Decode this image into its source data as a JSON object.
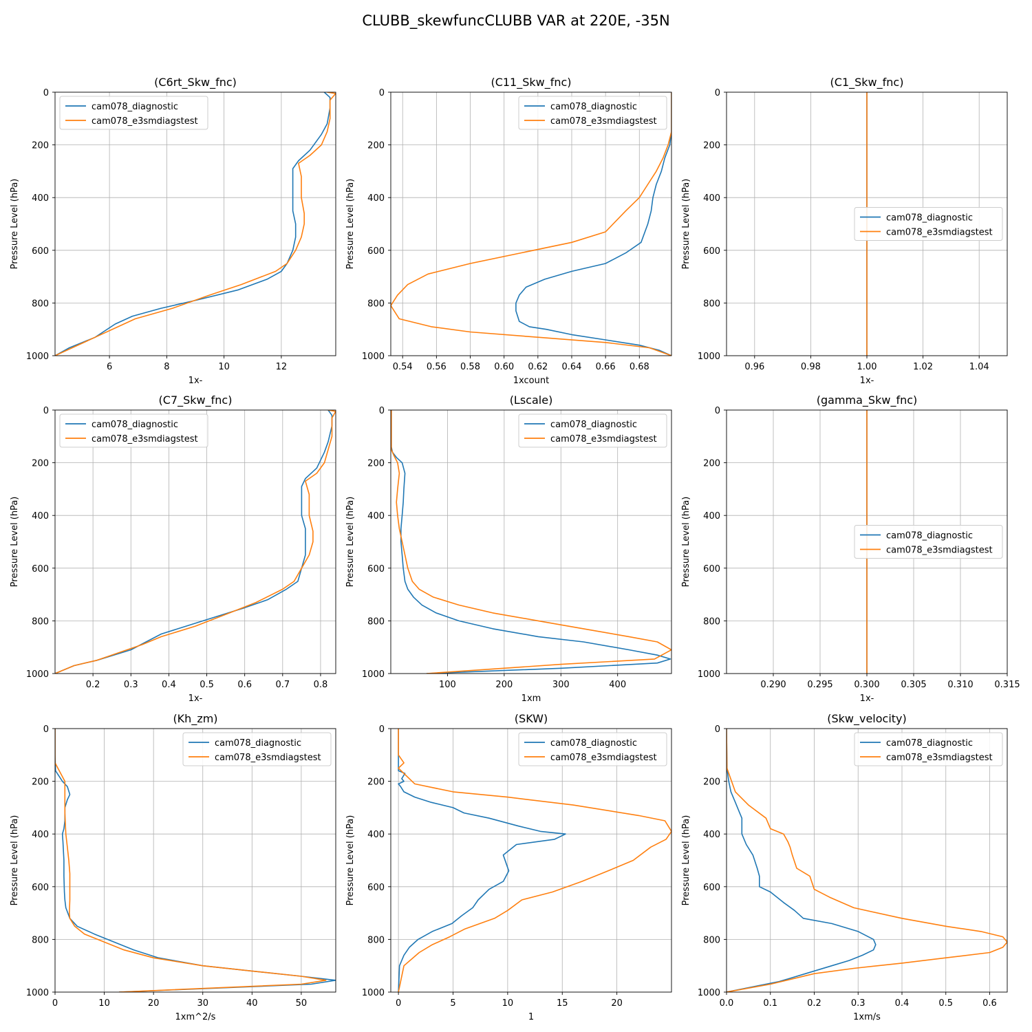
{
  "figure_title": "CLUBB_skewfuncCLUBB VAR at 220E, -35N",
  "colors": {
    "cam078_diagnostic": "#1f77b4",
    "cam078_e3smdiagstest": "#ff7f0e",
    "grid": "#b0b0b0"
  },
  "chart_data": [
    {
      "type": "line",
      "title": "(C6rt_Skw_fnc)",
      "xlabel": "1x-",
      "ylabel": "Pressure Level (hPa)",
      "xlim": [
        4.1,
        13.9
      ],
      "ylim": [
        1000,
        0
      ],
      "xticks": [
        6,
        8,
        10,
        12
      ],
      "yticks": [
        0,
        200,
        400,
        600,
        800,
        1000
      ],
      "grid": true,
      "legend": "upper left",
      "series": [
        {
          "name": "cam078_diagnostic",
          "x": [
            13.5,
            13.7,
            13.7,
            13.6,
            13.4,
            13.0,
            12.6,
            12.4,
            12.4,
            12.4,
            12.4,
            12.5,
            12.5,
            12.4,
            12.2,
            12.0,
            11.5,
            10.5,
            9.0,
            7.8,
            6.8,
            6.2,
            5.5,
            4.6,
            4.1
          ],
          "y": [
            0,
            20,
            60,
            120,
            160,
            220,
            260,
            290,
            330,
            400,
            450,
            500,
            550,
            600,
            650,
            680,
            710,
            750,
            790,
            820,
            850,
            880,
            930,
            970,
            1000
          ]
        },
        {
          "name": "cam078_e3smdiagstest",
          "x": [
            13.6,
            13.9,
            13.7,
            13.7,
            13.6,
            13.4,
            13.0,
            12.6,
            12.7,
            12.7,
            12.8,
            12.8,
            12.7,
            12.5,
            12.2,
            11.8,
            10.6,
            9.5,
            8.2,
            6.9,
            6.3,
            5.5,
            4.7,
            4.1
          ],
          "y": [
            0,
            5,
            30,
            100,
            150,
            200,
            240,
            270,
            320,
            400,
            460,
            500,
            550,
            600,
            650,
            680,
            730,
            770,
            820,
            860,
            890,
            930,
            970,
            1000
          ]
        }
      ]
    },
    {
      "type": "line",
      "title": "(C11_Skw_fnc)",
      "xlabel": "1xcount",
      "ylabel": "Pressure Level (hPa)",
      "xlim": [
        0.533,
        0.699
      ],
      "ylim": [
        1000,
        0
      ],
      "xticks": [
        0.54,
        0.56,
        0.58,
        0.6,
        0.62,
        0.64,
        0.66,
        0.68
      ],
      "yticks": [
        0,
        200,
        400,
        600,
        800,
        1000
      ],
      "grid": true,
      "legend": "upper right",
      "series": [
        {
          "name": "cam078_diagnostic",
          "x": [
            0.699,
            0.699,
            0.698,
            0.695,
            0.693,
            0.69,
            0.688,
            0.687,
            0.685,
            0.681,
            0.672,
            0.66,
            0.64,
            0.624,
            0.613,
            0.609,
            0.607,
            0.607,
            0.609,
            0.615,
            0.625,
            0.64,
            0.66,
            0.68,
            0.692,
            0.699
          ],
          "y": [
            0,
            150,
            200,
            250,
            300,
            350,
            400,
            450,
            500,
            570,
            610,
            650,
            680,
            710,
            740,
            770,
            800,
            830,
            870,
            890,
            900,
            920,
            940,
            960,
            980,
            1000
          ]
        },
        {
          "name": "cam078_e3smdiagstest",
          "x": [
            0.699,
            0.699,
            0.697,
            0.694,
            0.69,
            0.685,
            0.68,
            0.672,
            0.66,
            0.64,
            0.61,
            0.58,
            0.555,
            0.543,
            0.537,
            0.533,
            0.538,
            0.557,
            0.58,
            0.62,
            0.66,
            0.686,
            0.699
          ],
          "y": [
            0,
            150,
            200,
            250,
            300,
            350,
            400,
            450,
            530,
            570,
            610,
            650,
            690,
            730,
            770,
            810,
            860,
            890,
            910,
            930,
            950,
            970,
            1000
          ]
        }
      ]
    },
    {
      "type": "line",
      "title": "(C1_Skw_fnc)",
      "xlabel": "1x-",
      "ylabel": "Pressure Level (hPa)",
      "xlim": [
        0.95,
        1.05
      ],
      "ylim": [
        1000,
        0
      ],
      "xticks": [
        0.96,
        0.98,
        1.0,
        1.02,
        1.04
      ],
      "yticks": [
        0,
        200,
        400,
        600,
        800,
        1000
      ],
      "grid": true,
      "legend": "center right",
      "series": [
        {
          "name": "cam078_diagnostic",
          "x": [
            1.0,
            1.0
          ],
          "y": [
            0,
            1000
          ]
        },
        {
          "name": "cam078_e3smdiagstest",
          "x": [
            1.0,
            1.0
          ],
          "y": [
            0,
            1000
          ]
        }
      ]
    },
    {
      "type": "line",
      "title": "(C7_Skw_fnc)",
      "xlabel": "1x-",
      "ylabel": "Pressure Level (hPa)",
      "xlim": [
        0.1,
        0.84
      ],
      "ylim": [
        1000,
        0
      ],
      "xticks": [
        0.2,
        0.3,
        0.4,
        0.5,
        0.6,
        0.7,
        0.8
      ],
      "yticks": [
        0,
        200,
        400,
        600,
        800,
        1000
      ],
      "grid": true,
      "legend": "upper left",
      "series": [
        {
          "name": "cam078_diagnostic",
          "x": [
            0.82,
            0.83,
            0.83,
            0.82,
            0.81,
            0.79,
            0.76,
            0.75,
            0.75,
            0.75,
            0.76,
            0.76,
            0.76,
            0.75,
            0.74,
            0.71,
            0.66,
            0.6,
            0.49,
            0.38,
            0.34,
            0.3,
            0.21,
            0.15,
            0.1
          ],
          "y": [
            0,
            20,
            60,
            120,
            160,
            220,
            260,
            290,
            330,
            400,
            450,
            500,
            550,
            600,
            650,
            680,
            720,
            750,
            800,
            850,
            880,
            910,
            950,
            970,
            1000
          ]
        },
        {
          "name": "cam078_e3smdiagstest",
          "x": [
            0.82,
            0.84,
            0.83,
            0.83,
            0.82,
            0.81,
            0.79,
            0.76,
            0.77,
            0.77,
            0.78,
            0.78,
            0.77,
            0.75,
            0.73,
            0.7,
            0.63,
            0.56,
            0.47,
            0.38,
            0.33,
            0.21,
            0.15,
            0.1
          ],
          "y": [
            0,
            5,
            30,
            100,
            150,
            200,
            240,
            270,
            320,
            400,
            460,
            500,
            550,
            600,
            650,
            680,
            730,
            770,
            820,
            860,
            890,
            950,
            970,
            1000
          ]
        }
      ]
    },
    {
      "type": "line",
      "title": "(Lscale)",
      "xlabel": "1xm",
      "ylabel": "Pressure Level (hPa)",
      "xlim": [
        0,
        495
      ],
      "ylim": [
        1000,
        0
      ],
      "xticks": [
        100,
        200,
        300,
        400
      ],
      "yticks": [
        0,
        200,
        400,
        600,
        800,
        1000
      ],
      "grid": true,
      "legend": "upper right",
      "series": [
        {
          "name": "cam078_diagnostic",
          "x": [
            1,
            1,
            3,
            10,
            20,
            25,
            23,
            22,
            20,
            18,
            18,
            20,
            22,
            25,
            30,
            40,
            55,
            80,
            120,
            180,
            260,
            340,
            420,
            470,
            493,
            470,
            300,
            63
          ],
          "y": [
            0,
            140,
            160,
            180,
            200,
            240,
            300,
            350,
            400,
            450,
            500,
            550,
            600,
            650,
            680,
            710,
            740,
            770,
            800,
            830,
            860,
            880,
            910,
            930,
            945,
            960,
            980,
            1000
          ]
        },
        {
          "name": "cam078_e3smdiagstest",
          "x": [
            1,
            1,
            5,
            12,
            15,
            12,
            10,
            12,
            15,
            20,
            25,
            30,
            38,
            50,
            75,
            120,
            180,
            260,
            340,
            420,
            470,
            495,
            465,
            300,
            63
          ],
          "y": [
            0,
            150,
            170,
            200,
            240,
            300,
            350,
            400,
            450,
            500,
            550,
            600,
            650,
            680,
            710,
            740,
            770,
            800,
            830,
            860,
            880,
            910,
            945,
            965,
            1000
          ]
        }
      ]
    },
    {
      "type": "line",
      "title": "(gamma_Skw_fnc)",
      "xlabel": "1x-",
      "ylabel": "Pressure Level (hPa)",
      "xlim": [
        0.285,
        0.315
      ],
      "ylim": [
        1000,
        0
      ],
      "xticks": [
        0.29,
        0.295,
        0.3,
        0.305,
        0.31,
        0.315
      ],
      "yticks": [
        0,
        200,
        400,
        600,
        800,
        1000
      ],
      "grid": true,
      "legend": "center right",
      "series": [
        {
          "name": "cam078_diagnostic",
          "x": [
            0.3,
            0.3
          ],
          "y": [
            0,
            1000
          ]
        },
        {
          "name": "cam078_e3smdiagstest",
          "x": [
            0.3,
            0.3
          ],
          "y": [
            0,
            1000
          ]
        }
      ]
    },
    {
      "type": "line",
      "title": "(Kh_zm)",
      "xlabel": "1xm^2/s",
      "ylabel": "Pressure Level (hPa)",
      "xlim": [
        0,
        57
      ],
      "ylim": [
        1000,
        0
      ],
      "xticks": [
        0,
        10,
        20,
        30,
        40,
        50
      ],
      "yticks": [
        0,
        200,
        400,
        600,
        800,
        1000
      ],
      "grid": true,
      "legend": "upper right",
      "series": [
        {
          "name": "cam078_diagnostic",
          "x": [
            0,
            0,
            0.1,
            1.5,
            2.5,
            3.0,
            2.5,
            2.0,
            2.0,
            1.8,
            1.5,
            1.6,
            1.8,
            1.8,
            1.9,
            2.0,
            2.2,
            3.0,
            4.5,
            8,
            12,
            16,
            21,
            30,
            40,
            50,
            57,
            52,
            13
          ],
          "y": [
            0,
            100,
            160,
            200,
            220,
            250,
            270,
            300,
            350,
            380,
            400,
            430,
            500,
            560,
            620,
            650,
            680,
            720,
            750,
            780,
            810,
            840,
            870,
            900,
            920,
            940,
            955,
            970,
            1000
          ]
        },
        {
          "name": "cam078_e3smdiagstest",
          "x": [
            0,
            0,
            2.0,
            2.0,
            2.0,
            2.2,
            2.5,
            2.8,
            3.0,
            3.0,
            2.9,
            3.0,
            4.0,
            6,
            10,
            14,
            20,
            30,
            40,
            50,
            55,
            50,
            13
          ],
          "y": [
            0,
            130,
            200,
            250,
            320,
            400,
            450,
            500,
            550,
            650,
            700,
            720,
            750,
            780,
            810,
            840,
            870,
            900,
            920,
            940,
            955,
            970,
            1000
          ]
        }
      ]
    },
    {
      "type": "line",
      "title": "(SKW)",
      "xlabel": "1",
      "ylabel": "Pressure Level (hPa)",
      "xlim": [
        -0.7,
        25
      ],
      "ylim": [
        1000,
        0
      ],
      "xticks": [
        0,
        5,
        10,
        15,
        20
      ],
      "yticks": [
        0,
        200,
        400,
        600,
        800,
        1000
      ],
      "grid": true,
      "legend": "upper right",
      "series": [
        {
          "name": "cam078_diagnostic",
          "x": [
            0,
            0,
            0.6,
            0.3,
            0.5,
            0,
            0.2,
            0.5,
            1.5,
            3,
            5,
            6,
            8.3,
            11,
            13,
            15.3,
            14.3,
            10.8,
            9.6,
            10.1,
            9.6,
            8.3,
            7.3,
            6.8,
            5.8,
            4.9,
            3.1,
            1.8,
            1.0,
            0.5,
            0.1,
            0
          ],
          "y": [
            0,
            160,
            170,
            190,
            200,
            210,
            220,
            240,
            260,
            280,
            300,
            320,
            340,
            370,
            390,
            400,
            420,
            440,
            480,
            540,
            580,
            610,
            650,
            680,
            710,
            740,
            770,
            800,
            830,
            860,
            900,
            1000
          ]
        },
        {
          "name": "cam078_e3smdiagstest",
          "x": [
            0,
            0,
            0.5,
            0,
            1.5,
            5,
            10,
            16,
            22,
            24.4,
            25.0,
            24.5,
            23.1,
            21.5,
            19.2,
            16.8,
            14.1,
            11.3,
            10.0,
            8.8,
            6.1,
            4.7,
            3.1,
            1.9,
            0.5,
            0
          ],
          "y": [
            0,
            100,
            130,
            150,
            210,
            240,
            260,
            290,
            330,
            350,
            390,
            420,
            450,
            500,
            540,
            580,
            620,
            650,
            690,
            720,
            760,
            790,
            820,
            850,
            900,
            1000
          ]
        }
      ]
    },
    {
      "type": "line",
      "title": "(Skw_velocity)",
      "xlabel": "1xm/s",
      "ylabel": "Pressure Level (hPa)",
      "xlim": [
        0,
        0.64
      ],
      "ylim": [
        1000,
        0
      ],
      "xticks": [
        0.0,
        0.1,
        0.2,
        0.3,
        0.4,
        0.5,
        0.6
      ],
      "yticks": [
        0,
        200,
        400,
        600,
        800,
        1000
      ],
      "grid": true,
      "legend": "upper right",
      "series": [
        {
          "name": "cam078_diagnostic",
          "x": [
            0,
            0.001,
            0.005,
            0.01,
            0.02,
            0.03,
            0.035,
            0.035,
            0.045,
            0.06,
            0.07,
            0.075,
            0.075,
            0.1,
            0.13,
            0.155,
            0.175,
            0.24,
            0.3,
            0.335,
            0.34,
            0.335,
            0.31,
            0.28,
            0.24,
            0.18,
            0.12,
            0.06,
            0
          ],
          "y": [
            0,
            150,
            200,
            240,
            280,
            320,
            340,
            400,
            440,
            480,
            530,
            560,
            600,
            620,
            660,
            690,
            720,
            740,
            770,
            800,
            820,
            840,
            860,
            880,
            900,
            930,
            960,
            980,
            1000
          ]
        },
        {
          "name": "cam078_e3smdiagstest",
          "x": [
            0,
            0.001,
            0.02,
            0.05,
            0.09,
            0.1,
            0.13,
            0.14,
            0.145,
            0.15,
            0.16,
            0.19,
            0.2,
            0.235,
            0.29,
            0.4,
            0.5,
            0.58,
            0.63,
            0.64,
            0.63,
            0.6,
            0.5,
            0.4,
            0.29,
            0.2,
            0.1,
            0
          ],
          "y": [
            0,
            150,
            240,
            290,
            340,
            380,
            400,
            430,
            450,
            480,
            530,
            560,
            610,
            640,
            680,
            720,
            750,
            770,
            790,
            810,
            830,
            850,
            870,
            890,
            910,
            930,
            970,
            1000
          ]
        }
      ]
    }
  ]
}
